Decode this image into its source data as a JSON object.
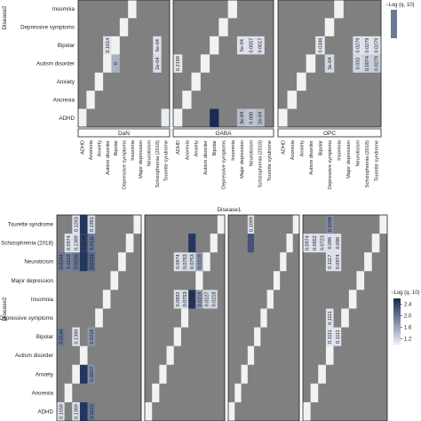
{
  "chart_data": [
    {
      "type": "heatmap",
      "title": "",
      "xlabel": "Disease1",
      "ylabel": "Disease2",
      "panels": [
        "DaN",
        "GABA",
        "OPC"
      ],
      "row_labels": [
        "Insomnia",
        "Depressive symptoms",
        "Bipolar",
        "Autism disorder",
        "Anxiety",
        "Anorexia",
        "ADHD"
      ],
      "col_labels": [
        "ADHD",
        "Anorexia",
        "Anxiety",
        "Autism disorder",
        "Bipolar",
        "Depressive symptoms",
        "Insomnia",
        "Major depression",
        "Neuroticism",
        "Schizophrenia (2018)",
        "Tourette syndrome"
      ],
      "legend_title": "−Log (q, 10)",
      "cells": [
        {
          "panel": 0,
          "row": 2,
          "col": 3,
          "value": 0.1014,
          "intensity": 0.05,
          "label": "0.1014"
        },
        {
          "panel": 0,
          "row": 3,
          "col": 4,
          "value": 0,
          "intensity": 0.3,
          "label": "0"
        },
        {
          "panel": 0,
          "row": 2,
          "col": 9,
          "value": 0.0006,
          "intensity": 0.05,
          "label": "6e-04"
        },
        {
          "panel": 0,
          "row": 3,
          "col": 9,
          "value": 0.0002,
          "intensity": 0.08,
          "label": "2e-04"
        },
        {
          "panel": 0,
          "row": 6,
          "col": 10,
          "value": null,
          "intensity": 0.0,
          "label": ""
        },
        {
          "panel": 1,
          "row": 3,
          "col": 0,
          "value": 0.2189,
          "intensity": 0.02,
          "label": "0.2189"
        },
        {
          "panel": 1,
          "row": 6,
          "col": 4,
          "value": null,
          "intensity": 1.0,
          "label": ""
        },
        {
          "panel": 1,
          "row": 2,
          "col": 7,
          "value": 0.0005,
          "intensity": 0.05,
          "label": "5e-04"
        },
        {
          "panel": 1,
          "row": 6,
          "col": 7,
          "value": 0.0003,
          "intensity": 0.25,
          "label": "3e-04"
        },
        {
          "panel": 1,
          "row": 2,
          "col": 8,
          "value": 0.0057,
          "intensity": 0.05,
          "label": "0.0057"
        },
        {
          "panel": 1,
          "row": 6,
          "col": 8,
          "value": 0.008,
          "intensity": 0.2,
          "label": "0.008"
        },
        {
          "panel": 1,
          "row": 2,
          "col": 9,
          "value": 0.0017,
          "intensity": 0.05,
          "label": "0.0017"
        },
        {
          "panel": 1,
          "row": 6,
          "col": 9,
          "value": 0.0002,
          "intensity": 0.25,
          "label": "2e-04"
        },
        {
          "panel": 2,
          "row": 2,
          "col": 4,
          "value": 0.0388,
          "intensity": 0.02,
          "label": "0.0388"
        },
        {
          "panel": 2,
          "row": 3,
          "col": 5,
          "value": 0.0003,
          "intensity": 0.1,
          "label": "3e-04"
        },
        {
          "panel": 2,
          "row": 2,
          "col": 8,
          "value": 0.0279,
          "intensity": 0.05,
          "label": "0.0279"
        },
        {
          "panel": 2,
          "row": 3,
          "col": 8,
          "value": 0.032,
          "intensity": 0.1,
          "label": "0.032"
        },
        {
          "panel": 2,
          "row": 2,
          "col": 9,
          "value": 0.0279,
          "intensity": 0.05,
          "label": "0.0279"
        },
        {
          "panel": 2,
          "row": 3,
          "col": 9,
          "value": 0.0074,
          "intensity": 0.15,
          "label": "0.0074"
        },
        {
          "panel": 2,
          "row": 2,
          "col": 10,
          "value": 0.0279,
          "intensity": 0.05,
          "label": "0.0279"
        },
        {
          "panel": 2,
          "row": 3,
          "col": 10,
          "value": 0.0279,
          "intensity": 0.15,
          "label": "0.0279"
        }
      ]
    },
    {
      "type": "heatmap",
      "title": "",
      "xlabel": "",
      "ylabel": "Disease2",
      "panels": [
        "",
        "",
        "",
        ""
      ],
      "row_labels": [
        "Tourette syndrome",
        "Schizophrenia (2018)",
        "Neuroticism",
        "Major depression",
        "Insomnia",
        "Depressive symptoms",
        "Bipolar",
        "Autism disorder",
        "Anxiety",
        "Anorexia",
        "ADHD"
      ],
      "legend_title": "−Log (q, 10)",
      "legend_ticks": [
        2.4,
        2.0,
        1.6,
        1.2
      ],
      "legend_range": [
        1.0,
        2.6
      ],
      "cells": [
        {
          "panel": 0,
          "row": 0,
          "col": 2,
          "value": 0.1263,
          "intensity": 0.05,
          "label": "0.1263"
        },
        {
          "panel": 0,
          "row": 0,
          "col": 3,
          "value": null,
          "intensity": 0.95,
          "label": ""
        },
        {
          "panel": 0,
          "row": 0,
          "col": 4,
          "value": 0.1361,
          "intensity": 0.1,
          "label": "0.1361"
        },
        {
          "panel": 0,
          "row": 1,
          "col": 1,
          "value": 0.0974,
          "intensity": 0.05,
          "label": "0.0974"
        },
        {
          "panel": 0,
          "row": 1,
          "col": 2,
          "value": 0.1389,
          "intensity": 0.05,
          "label": "0.1389"
        },
        {
          "panel": 0,
          "row": 1,
          "col": 3,
          "value": 0.0218,
          "intensity": 0.9,
          "label": "0.0218"
        },
        {
          "panel": 0,
          "row": 1,
          "col": 4,
          "value": 0.0111,
          "intensity": 0.6,
          "label": "0.0111"
        },
        {
          "panel": 0,
          "row": 2,
          "col": 0,
          "value": 0.0144,
          "intensity": 0.6,
          "label": "0.0144"
        },
        {
          "panel": 0,
          "row": 2,
          "col": 1,
          "value": 0.0218,
          "intensity": 0.55,
          "label": "0.0218"
        },
        {
          "panel": 0,
          "row": 2,
          "col": 2,
          "value": 0.0156,
          "intensity": 0.6,
          "label": "0.0156"
        },
        {
          "panel": 0,
          "row": 2,
          "col": 3,
          "value": null,
          "intensity": 0.95,
          "label": ""
        },
        {
          "panel": 0,
          "row": 2,
          "col": 4,
          "value": 0.0131,
          "intensity": 0.7,
          "label": "0.0131"
        },
        {
          "panel": 0,
          "row": 6,
          "col": 0,
          "value": 0.0144,
          "intensity": 0.6,
          "label": "0.0144"
        },
        {
          "panel": 0,
          "row": 6,
          "col": 2,
          "value": 0.1389,
          "intensity": 0.05,
          "label": "0.1389"
        },
        {
          "panel": 0,
          "row": 6,
          "col": 4,
          "value": 0.0218,
          "intensity": 0.45,
          "label": "0.0218"
        },
        {
          "panel": 0,
          "row": 8,
          "col": 3,
          "value": null,
          "intensity": 0.95,
          "label": ""
        },
        {
          "panel": 0,
          "row": 8,
          "col": 4,
          "value": 0.0827,
          "intensity": 0.5,
          "label": "0.0827"
        },
        {
          "panel": 0,
          "row": 10,
          "col": 0,
          "value": 0.1558,
          "intensity": 0.05,
          "label": "0.1558"
        },
        {
          "panel": 0,
          "row": 10,
          "col": 2,
          "value": 0.1369,
          "intensity": 0.05,
          "label": "0.1369"
        },
        {
          "panel": 0,
          "row": 10,
          "col": 3,
          "value": null,
          "intensity": 0.95,
          "label": ""
        },
        {
          "panel": 0,
          "row": 10,
          "col": 4,
          "value": 0.0113,
          "intensity": 0.6,
          "label": "0.0113"
        },
        {
          "panel": 1,
          "row": 1,
          "col": 6,
          "value": null,
          "intensity": 0.95,
          "label": ""
        },
        {
          "panel": 1,
          "row": 2,
          "col": 4,
          "value": 0.0974,
          "intensity": 0.05,
          "label": "0.0974"
        },
        {
          "panel": 1,
          "row": 2,
          "col": 5,
          "value": 0.0753,
          "intensity": 0.1,
          "label": "0.0753"
        },
        {
          "panel": 1,
          "row": 2,
          "col": 6,
          "value": 0.0753,
          "intensity": 0.1,
          "label": "0.0753"
        },
        {
          "panel": 1,
          "row": 2,
          "col": 7,
          "value": 0.0218,
          "intensity": 0.4,
          "label": "0.0218"
        },
        {
          "panel": 1,
          "row": 4,
          "col": 4,
          "value": 0.0892,
          "intensity": 0.05,
          "label": "0.0892"
        },
        {
          "panel": 1,
          "row": 4,
          "col": 5,
          "value": 0.0753,
          "intensity": 0.1,
          "label": "0.0753"
        },
        {
          "panel": 1,
          "row": 4,
          "col": 6,
          "value": 0.0702,
          "intensity": 0.95,
          "label": "0.0702"
        },
        {
          "panel": 1,
          "row": 4,
          "col": 7,
          "value": 0.0218,
          "intensity": 0.4,
          "label": "0.0218"
        },
        {
          "panel": 1,
          "row": 4,
          "col": 8,
          "value": 0.0227,
          "intensity": 0.1,
          "label": "0.0227"
        },
        {
          "panel": 1,
          "row": 4,
          "col": 9,
          "value": 0.0218,
          "intensity": 0.1,
          "label": "0.0218"
        },
        {
          "panel": 2,
          "row": 0,
          "col": 3,
          "value": 0.1099,
          "intensity": 0.05,
          "label": "0.1099"
        },
        {
          "panel": 2,
          "row": 1,
          "col": 3,
          "value": null,
          "intensity": 0.8,
          "label": ""
        },
        {
          "panel": 3,
          "row": 0,
          "col": 3,
          "value": 0.0208,
          "intensity": 0.5,
          "label": "0.0208"
        },
        {
          "panel": 3,
          "row": 1,
          "col": 0,
          "value": 0.0974,
          "intensity": 0.05,
          "label": "0.0974"
        },
        {
          "panel": 3,
          "row": 1,
          "col": 1,
          "value": 0.0852,
          "intensity": 0.05,
          "label": "0.0852"
        },
        {
          "panel": 3,
          "row": 1,
          "col": 2,
          "value": 0.0723,
          "intensity": 0.05,
          "label": "0.0723"
        },
        {
          "panel": 3,
          "row": 1,
          "col": 3,
          "value": 0.096,
          "intensity": 0.05,
          "label": "0.096"
        },
        {
          "panel": 3,
          "row": 1,
          "col": 4,
          "value": 0.096,
          "intensity": 0.05,
          "label": "0.096"
        },
        {
          "panel": 3,
          "row": 2,
          "col": 3,
          "value": 0.1117,
          "intensity": 0.05,
          "label": "0.1117"
        },
        {
          "panel": 3,
          "row": 2,
          "col": 4,
          "value": 0.0974,
          "intensity": 0.05,
          "label": "0.0974"
        },
        {
          "panel": 3,
          "row": 5,
          "col": 3,
          "value": 0.1111,
          "intensity": 0.05,
          "label": "0.1111"
        },
        {
          "panel": 3,
          "row": 6,
          "col": 3,
          "value": 0.1111,
          "intensity": 0.05,
          "label": "0.1111"
        },
        {
          "panel": 3,
          "row": 6,
          "col": 4,
          "value": 0.1111,
          "intensity": 0.05,
          "label": "0.1111"
        }
      ]
    }
  ],
  "colors": {
    "na": "#808080",
    "diag": "#f2f2f2",
    "low": "#e8ecf4",
    "high": "#1a2c55"
  }
}
